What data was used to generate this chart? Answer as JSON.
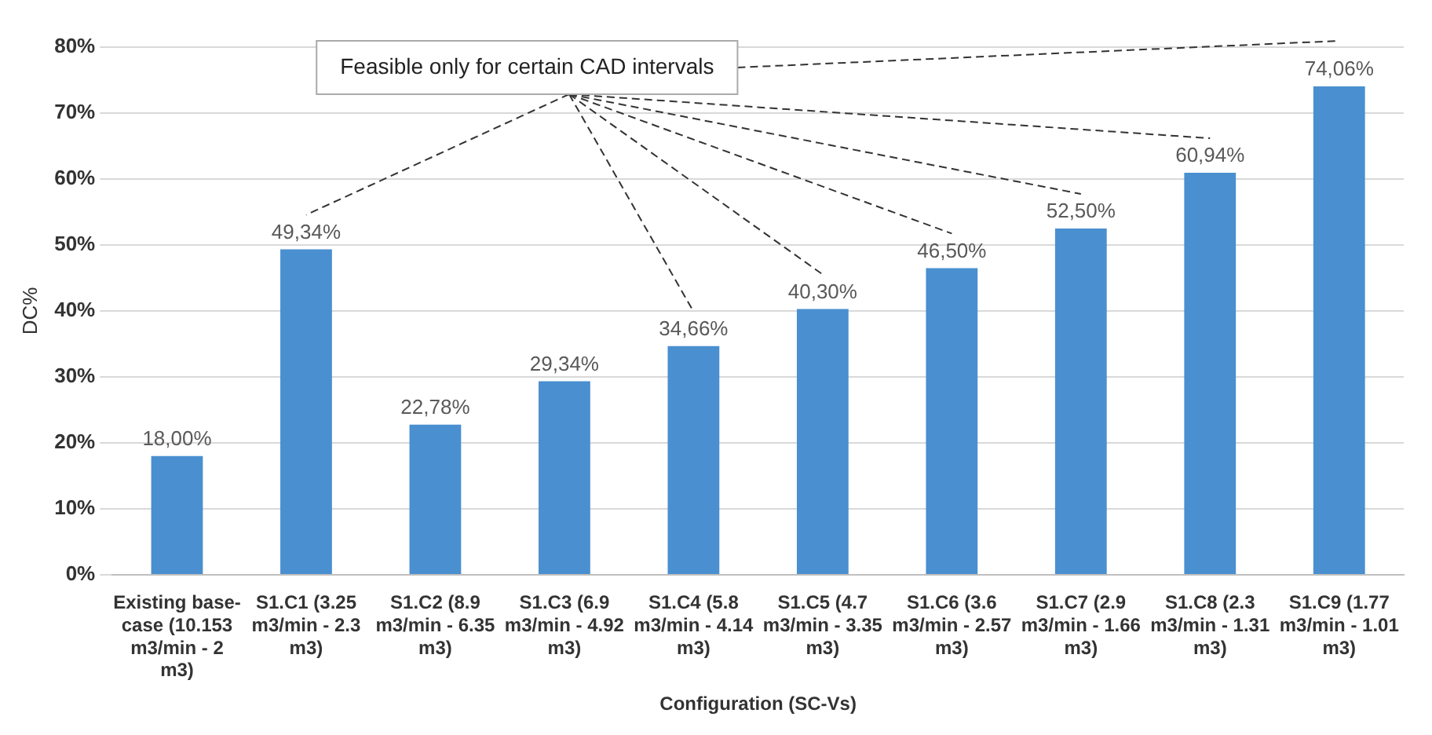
{
  "chart_data": {
    "type": "bar",
    "xlabel": "Configuration (SC-Vs)",
    "ylabel": "DC%",
    "categories": [
      "Existing base-case (10.153 m3/min - 2 m3)",
      "S1.C1 (3.25 m3/min - 2.3 m3)",
      "S1.C2 (8.9 m3/min - 6.35 m3)",
      "S1.C3 (6.9 m3/min - 4.92 m3)",
      "S1.C4 (5.8 m3/min - 4.14 m3)",
      "S1.C5 (4.7 m3/min - 3.35 m3)",
      "S1.C6 (3.6 m3/min - 2.57 m3)",
      "S1.C7 (2.9 m3/min - 1.66 m3)",
      "S1.C8 (2.3 m3/min - 1.31 m3)",
      "S1.C9 (1.77 m3/min - 1.01 m3)"
    ],
    "values": [
      18.0,
      49.34,
      22.78,
      29.34,
      34.66,
      40.3,
      46.5,
      52.5,
      60.94,
      74.06
    ],
    "value_labels": [
      "18,00%",
      "49,34%",
      "22,78%",
      "29,34%",
      "34,66%",
      "40,30%",
      "46,50%",
      "52,50%",
      "60,94%",
      "74,06%"
    ],
    "color": "#4a8fd0",
    "ylim": [
      0,
      80
    ],
    "yticks": [
      {
        "value": 0,
        "label": "0%"
      },
      {
        "value": 10,
        "label": "10%"
      },
      {
        "value": 20,
        "label": "20%"
      },
      {
        "value": 30,
        "label": "30%"
      },
      {
        "value": 40,
        "label": "40%"
      },
      {
        "value": 50,
        "label": "50%"
      },
      {
        "value": 60,
        "label": "60%"
      },
      {
        "value": 70,
        "label": "70%"
      },
      {
        "value": 80,
        "label": "80%"
      }
    ],
    "grid": "y",
    "legend": false,
    "annotations": [
      "Feasible only for certain CAD intervals"
    ]
  }
}
